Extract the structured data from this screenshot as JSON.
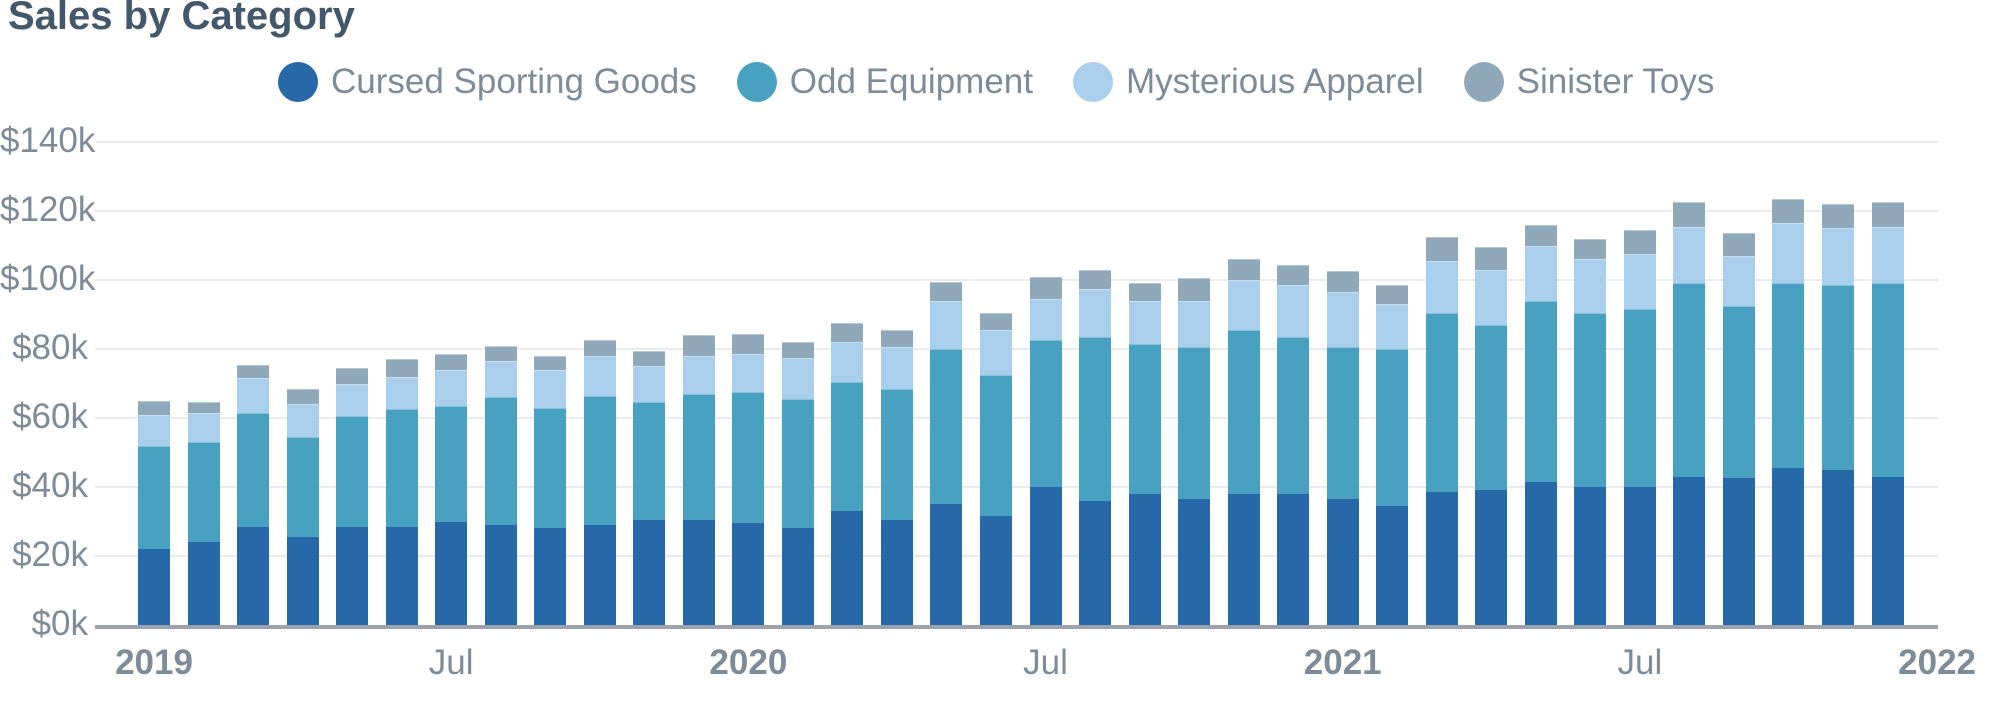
{
  "chart_data": {
    "type": "bar",
    "stacked": true,
    "title": "Sales by Category",
    "values_unit": "USD thousands",
    "ylim": [
      0,
      140
    ],
    "grid": "horizontal",
    "legend_position": "top",
    "categories": [
      "Jan 2019",
      "Feb 2019",
      "Mar 2019",
      "Apr 2019",
      "May 2019",
      "Jun 2019",
      "Jul 2019",
      "Aug 2019",
      "Sep 2019",
      "Oct 2019",
      "Nov 2019",
      "Dec 2019",
      "Jan 2020",
      "Feb 2020",
      "Mar 2020",
      "Apr 2020",
      "May 2020",
      "Jun 2020",
      "Jul 2020",
      "Aug 2020",
      "Sep 2020",
      "Oct 2020",
      "Nov 2020",
      "Dec 2020",
      "Jan 2021",
      "Feb 2021",
      "Mar 2021",
      "Apr 2021",
      "May 2021",
      "Jun 2021",
      "Jul 2021",
      "Aug 2021",
      "Sep 2021",
      "Oct 2021",
      "Nov 2021",
      "Dec 2021"
    ],
    "series": [
      {
        "name": "Cursed Sporting Goods",
        "color": "#2769a8",
        "values": [
          22,
          24,
          28.5,
          25.5,
          28.5,
          28.5,
          30,
          29,
          28,
          29,
          30.5,
          30.5,
          29.5,
          28,
          33,
          30.5,
          35,
          31.5,
          40,
          36,
          38,
          36.5,
          38,
          38,
          36.5,
          34.5,
          38.5,
          39,
          41.5,
          40,
          40,
          43,
          42.5,
          45.5,
          45,
          43
        ]
      },
      {
        "name": "Odd Equipment",
        "color": "#48a1c0",
        "values": [
          30,
          29,
          33,
          29,
          32,
          34,
          33.5,
          37,
          35,
          37.5,
          34,
          36.5,
          38,
          37.5,
          37.5,
          38,
          45,
          41,
          42.5,
          47.5,
          43.5,
          44,
          47.5,
          45.5,
          44,
          45.5,
          52,
          48,
          52.5,
          50.5,
          51.5,
          56,
          50,
          53.5,
          53.5,
          56
        ]
      },
      {
        "name": "Mysterious Apparel",
        "color": "#a9cfec",
        "values": [
          9,
          8.5,
          10,
          9.5,
          9.5,
          9.5,
          10.5,
          10.5,
          11,
          11.5,
          10.5,
          11,
          11,
          12,
          11.5,
          12,
          14,
          13,
          12,
          14,
          12.5,
          13.5,
          14.5,
          15,
          16,
          13,
          15,
          16,
          16,
          15.5,
          16,
          16.5,
          14.5,
          17.5,
          16.5,
          16.5
        ]
      },
      {
        "name": "Sinister Toys",
        "color": "#8fa9bb",
        "values": [
          4,
          3,
          4,
          4.5,
          4.5,
          5,
          4.5,
          4.5,
          4,
          4.5,
          4.5,
          6,
          6,
          4.5,
          5.5,
          5,
          5.5,
          5,
          6.5,
          5.5,
          5,
          6.5,
          6,
          6,
          6,
          5.5,
          7,
          6.5,
          6,
          6,
          7,
          7,
          6.5,
          7,
          7,
          7
        ]
      }
    ],
    "y_ticks": [
      {
        "value": 0,
        "label": "$0k"
      },
      {
        "value": 20,
        "label": "$20k"
      },
      {
        "value": 40,
        "label": "$40k"
      },
      {
        "value": 60,
        "label": "$60k"
      },
      {
        "value": 80,
        "label": "$80k"
      },
      {
        "value": 100,
        "label": "$100k"
      },
      {
        "value": 120,
        "label": "$120k"
      },
      {
        "value": 140,
        "label": "$140k"
      }
    ],
    "x_ticks": [
      {
        "label": "2019",
        "index": 0,
        "bold": true
      },
      {
        "label": "Jul",
        "index": 6,
        "bold": false
      },
      {
        "label": "2020",
        "index": 12,
        "bold": true
      },
      {
        "label": "Jul",
        "index": 18,
        "bold": false
      },
      {
        "label": "2021",
        "index": 24,
        "bold": true
      },
      {
        "label": "Jul",
        "index": 30,
        "bold": false
      },
      {
        "label": "2022",
        "index": 36,
        "bold": true
      }
    ]
  }
}
